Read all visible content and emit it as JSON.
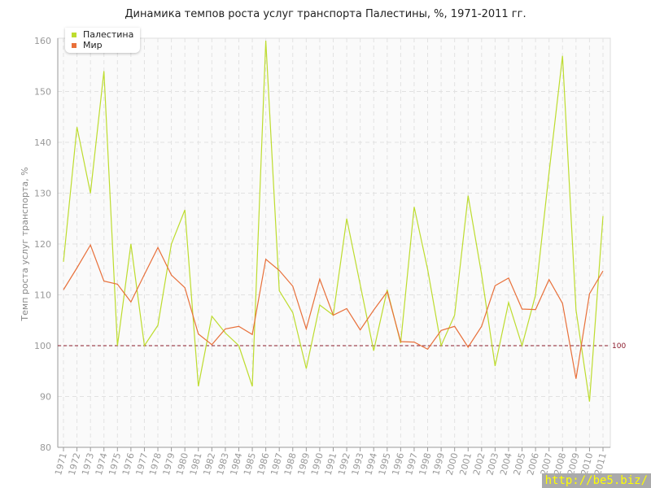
{
  "chart_data": {
    "type": "line",
    "title": "Динамика темпов роста услуг транспорта Палестины, %, 1971-2011 гг.",
    "xlabel": "",
    "ylabel": "Темп роста услуг транспорта, %",
    "ylim": [
      80,
      160
    ],
    "yticks": [
      "80",
      "90",
      "100",
      "110",
      "120",
      "130",
      "140",
      "150",
      "160"
    ],
    "grid": true,
    "legend_position": "top-left",
    "reference_line": {
      "value": 100,
      "label": "100",
      "color": "#8b1a2b"
    },
    "x": [
      "1971",
      "1972",
      "1973",
      "1974",
      "1975",
      "1976",
      "1977",
      "1978",
      "1979",
      "1980",
      "1981",
      "1982",
      "1983",
      "1984",
      "1985",
      "1986",
      "1987",
      "1988",
      "1989",
      "1990",
      "1991",
      "1992",
      "1993",
      "1994",
      "1995",
      "1996",
      "1997",
      "1998",
      "1999",
      "2000",
      "2001",
      "2002",
      "2003",
      "2004",
      "2005",
      "2006",
      "2007",
      "2008",
      "2009",
      "2010",
      "2011"
    ],
    "series": [
      {
        "name": "Палестина",
        "color": "#bddc2e",
        "values": [
          116.5,
          143,
          130,
          154,
          100,
          120,
          100,
          104,
          120,
          126.7,
          92,
          105.8,
          102.5,
          100,
          92,
          160,
          110.8,
          106.5,
          95.5,
          108,
          106,
          125,
          112,
          99,
          111,
          100.5,
          127.3,
          115,
          100,
          106,
          129.5,
          114,
          96,
          108.5,
          100,
          110,
          134,
          157,
          107,
          89,
          125.5
        ]
      },
      {
        "name": "Мир",
        "color": "#e8703a",
        "values": [
          111,
          115.3,
          119.8,
          112.7,
          112.1,
          108.6,
          114,
          119.3,
          113.9,
          111.4,
          102.3,
          100.2,
          103.3,
          103.8,
          102.2,
          117,
          114.8,
          111.7,
          103.3,
          113.1,
          106,
          107.3,
          103.1,
          107,
          110.6,
          100.8,
          100.7,
          99.3,
          103,
          103.8,
          99.7,
          103.8,
          111.8,
          113.3,
          107.2,
          107.1,
          113,
          108.3,
          93.5,
          110.2,
          114.7
        ]
      }
    ]
  },
  "watermark": "http://be5.biz/"
}
